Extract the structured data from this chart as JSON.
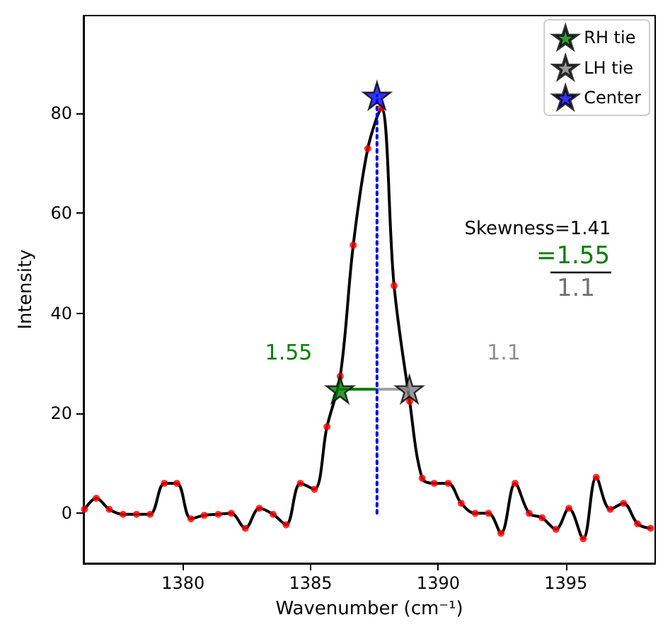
{
  "chart_data": {
    "type": "line",
    "xlabel": "Wavenumber (cm⁻¹)",
    "ylabel": "Intensity",
    "xlim": [
      1376.1,
      1398.5
    ],
    "ylim": [
      -10,
      99.5
    ],
    "xticks": [
      1380,
      1385,
      1390,
      1395
    ],
    "yticks": [
      0,
      20,
      40,
      60,
      80
    ],
    "grid": false,
    "legend": "top right",
    "annotations": [
      "Skewness=1.41",
      "=1.55",
      "1.1",
      "1.55",
      "1.1"
    ],
    "series": [
      {
        "color": "#000000",
        "marker": "none",
        "line_style": "solid",
        "x": [
          1376.14,
          1376.6,
          1377.11,
          1377.65,
          1378.18,
          1378.71,
          1379.27,
          1379.76,
          1380.31,
          1380.83,
          1381.38,
          1381.89,
          1382.44,
          1382.99,
          1383.53,
          1384.04,
          1384.6,
          1385.15,
          1385.64,
          1386.16,
          1386.67,
          1387.24,
          1387.77,
          1388.27,
          1388.88,
          1389.37,
          1389.84,
          1390.39,
          1390.9,
          1391.45,
          1391.97,
          1392.46,
          1393.01,
          1393.56,
          1394.07,
          1394.61,
          1395.12,
          1395.68,
          1396.19,
          1396.74,
          1397.26,
          1397.81,
          1398.32
        ],
        "values": [
          0.8,
          3,
          0.8,
          -0.2,
          -0.2,
          -0.2,
          6,
          6,
          -1.1,
          -0.4,
          -0.2,
          0,
          -3,
          1,
          -0.2,
          -2.3,
          6,
          4.8,
          17.3,
          27.4,
          53.6,
          72.9,
          81,
          45.5,
          22.4,
          7,
          6,
          6,
          2,
          0,
          0,
          -4,
          6,
          0,
          -0.9,
          -3.2,
          1,
          -5.1,
          7.2,
          0.8,
          2,
          -2.1,
          -3
        ]
      },
      {
        "type": "scatter",
        "color": "#ff0000",
        "marker": "circle",
        "x": [
          1376.14,
          1376.6,
          1377.11,
          1377.65,
          1378.18,
          1378.71,
          1379.27,
          1379.76,
          1380.31,
          1380.83,
          1381.38,
          1381.89,
          1382.44,
          1382.99,
          1383.53,
          1384.04,
          1384.6,
          1385.15,
          1385.64,
          1386.16,
          1386.67,
          1387.24,
          1387.77,
          1388.27,
          1388.88,
          1389.37,
          1389.84,
          1390.39,
          1390.9,
          1391.45,
          1391.97,
          1392.46,
          1393.01,
          1393.56,
          1394.07,
          1394.61,
          1395.12,
          1395.68,
          1396.19,
          1396.74,
          1397.26,
          1397.81,
          1398.32
        ],
        "values": [
          0.8,
          3,
          0.8,
          -0.2,
          -0.2,
          -0.2,
          6,
          6,
          -1.1,
          -0.4,
          -0.2,
          0,
          -3,
          1,
          -0.2,
          -2.3,
          6,
          4.8,
          17.3,
          27.4,
          53.6,
          72.9,
          81,
          45.5,
          22.4,
          7,
          6,
          6,
          2,
          0,
          0,
          -4,
          6,
          0,
          -0.9,
          -3.2,
          1,
          -5.1,
          7.2,
          0.8,
          2,
          -2.1,
          -3
        ]
      },
      {
        "type": "line",
        "color": "#008000",
        "marker": "none",
        "line_style": "solid",
        "x": [
          1386.15,
          1387.6
        ],
        "values": [
          24.8,
          24.8
        ]
      },
      {
        "type": "line",
        "color": "#a0a0a0",
        "marker": "none",
        "line_style": "solid",
        "x": [
          1387.6,
          1388.87
        ],
        "values": [
          24.8,
          24.8
        ]
      },
      {
        "type": "line",
        "color": "#0000ff",
        "marker": "none",
        "line_style": "dotted",
        "x": [
          1387.6,
          1387.6
        ],
        "values": [
          0,
          83.5
        ]
      },
      {
        "type": "scatter",
        "name": "RH tie",
        "color": "#008000",
        "marker": "star",
        "x": [
          1386.15
        ],
        "values": [
          24.8
        ]
      },
      {
        "type": "scatter",
        "name": "LH tie",
        "color": "#808080",
        "marker": "star",
        "x": [
          1388.87
        ],
        "values": [
          24.8
        ]
      },
      {
        "type": "scatter",
        "name": "Center",
        "color": "#0000ff",
        "marker": "star",
        "x": [
          1387.6
        ],
        "values": [
          83.5
        ]
      }
    ]
  }
}
